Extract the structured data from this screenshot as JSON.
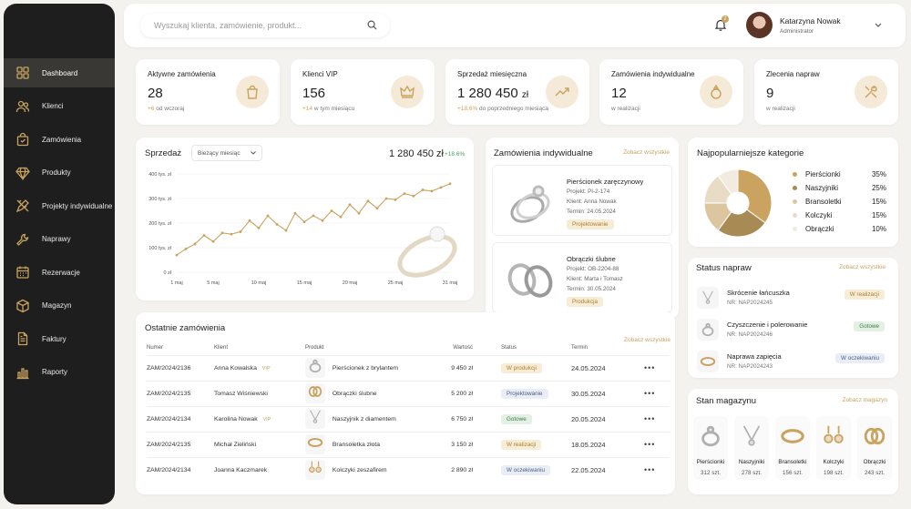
{
  "sidebar": {
    "items": [
      {
        "label": "Dashboard",
        "icon": "grid-icon"
      },
      {
        "label": "Klienci",
        "icon": "users-icon"
      },
      {
        "label": "Zamówienia",
        "icon": "bag-icon"
      },
      {
        "label": "Produkty",
        "icon": "diamond-icon"
      },
      {
        "label": "Projekty indywidualne",
        "icon": "pencil-ruler-icon"
      },
      {
        "label": "Naprawy",
        "icon": "wrench-icon"
      },
      {
        "label": "Rezerwacje",
        "icon": "calendar-icon"
      },
      {
        "label": "Magazyn",
        "icon": "box-icon"
      },
      {
        "label": "Faktury",
        "icon": "document-icon"
      },
      {
        "label": "Raporty",
        "icon": "bar-chart-icon"
      }
    ]
  },
  "header": {
    "search_placeholder": "Wyszukaj klienta, zamówienie, produkt...",
    "notifications": "2",
    "user_name": "Katarzyna Nowak",
    "user_role": "Administrator"
  },
  "kpis": [
    {
      "title": "Aktywne zamówienia",
      "value": "28",
      "unit": "",
      "delta": "+6",
      "note": "od wczoraj",
      "icon": "bag-icon"
    },
    {
      "title": "Klienci VIP",
      "value": "156",
      "unit": "",
      "delta": "+14",
      "note": "w tym miesiącu",
      "icon": "crown-icon"
    },
    {
      "title": "Sprzedaż miesięczna",
      "value": "1 280 450",
      "unit": "zł",
      "delta": "+18,6%",
      "note": "do poprzedniego miesiąca",
      "icon": "trend-up-icon"
    },
    {
      "title": "Zamówienia indywidualne",
      "value": "12",
      "unit": "",
      "delta": "",
      "note": "w realizacji",
      "icon": "ring-icon"
    },
    {
      "title": "Zlecenia napraw",
      "value": "9",
      "unit": "",
      "delta": "",
      "note": "w realizacji",
      "icon": "tools-icon"
    }
  ],
  "sales": {
    "title": "Sprzedaż",
    "period": "Bieżący miesiąc",
    "total": "1 280 450 zł",
    "growth": "+18.6%"
  },
  "chart_data": {
    "type": "line",
    "x": [
      1,
      2,
      3,
      4,
      5,
      6,
      7,
      8,
      9,
      10,
      11,
      12,
      13,
      14,
      15,
      16,
      17,
      18,
      19,
      20,
      21,
      22,
      23,
      24,
      25,
      26,
      27,
      28,
      29,
      30,
      31
    ],
    "xticks": [
      "1 maj",
      "5 maj",
      "10 maj",
      "15 maj",
      "20 maj",
      "25 maj",
      "31 maj"
    ],
    "xtick_values": [
      1,
      5,
      10,
      15,
      20,
      25,
      31
    ],
    "yticks": [
      "0 zł",
      "100 tys. zł",
      "200 tys. zł",
      "300 tys. zł",
      "400 tys. zł"
    ],
    "ylim": [
      0,
      400000
    ],
    "series": [
      {
        "values": [
          70000,
          95000,
          115000,
          150000,
          125000,
          160000,
          155000,
          165000,
          210000,
          180000,
          230000,
          195000,
          170000,
          240000,
          205000,
          230000,
          210000,
          250000,
          225000,
          275000,
          240000,
          290000,
          260000,
          300000,
          295000,
          320000,
          310000,
          335000,
          330000,
          345000,
          360000
        ]
      }
    ],
    "grid": true,
    "color": "#c9a35f"
  },
  "individual": {
    "title": "Zamówienia indywidualne",
    "link": "Zobacz wszystkie",
    "items": [
      {
        "name": "Pierścionek zaręczynowy",
        "project": "Projekt: PI-2-174",
        "client": "Klient: Anna Nowak",
        "term": "Termin: 24.05.2024",
        "status": "Projektowanie"
      },
      {
        "name": "Obrączki ślubne",
        "project": "Projekt: OB-2204-88",
        "client": "Klient: Marta i Tomasz",
        "term": "Termin: 30.05.2024",
        "status": "Produkcja"
      }
    ]
  },
  "categories": {
    "title": "Najpopularniejsze kategorie",
    "items": [
      {
        "name": "Pierścionki",
        "pct": "35%",
        "value": 35,
        "color": "#c9a35f"
      },
      {
        "name": "Naszyjniki",
        "pct": "25%",
        "value": 25,
        "color": "#a88a55"
      },
      {
        "name": "Bransoletki",
        "pct": "15%",
        "value": 15,
        "color": "#dcc6a0"
      },
      {
        "name": "Kolczyki",
        "pct": "15%",
        "value": 15,
        "color": "#e8dcc7"
      },
      {
        "name": "Obrączki",
        "pct": "10%",
        "value": 10,
        "color": "#f1ebe0"
      }
    ]
  },
  "repairs": {
    "title": "Status napraw",
    "link": "Zobacz wszystkie",
    "items": [
      {
        "name": "Skrócenie łańcuszka",
        "nr": "NR: NAP2024245",
        "status": "W realizacji",
        "style": "p-gold"
      },
      {
        "name": "Czyszczenie i polerowanie",
        "nr": "NR: NAP2024246",
        "status": "Gotowe",
        "style": "p-green"
      },
      {
        "name": "Naprawa zapięcia",
        "nr": "NR: NAP2024243",
        "status": "W oczekiwaniu",
        "style": "p-blue"
      }
    ]
  },
  "orders": {
    "title": "Ostatnie zamówienia",
    "link": "Zobacz wszystkie",
    "columns": [
      "Numer",
      "Klient",
      "Produkt",
      "Wartość",
      "Status",
      "Termin"
    ],
    "rows": [
      {
        "nr": "ZAM/2024/2136",
        "client": "Anna Kowalska",
        "vip": "VIP",
        "product": "Pierścionek z brylantem",
        "value": "9 450 zł",
        "status": "W produkcji",
        "style": "p-gold",
        "term": "24.05.2024"
      },
      {
        "nr": "ZAM/2024/2135",
        "client": "Tomasz Wiśniewski",
        "vip": "",
        "product": "Obrączki ślubne",
        "value": "5 200 zł",
        "status": "Projektowanie",
        "style": "p-blue",
        "term": "30.05.2024"
      },
      {
        "nr": "ZAM/2024/2134",
        "client": "Karolina Nowak",
        "vip": "VIP",
        "product": "Naszyjnik z diamentem",
        "value": "6 750 zł",
        "status": "Gotowe",
        "style": "p-green",
        "term": "20.05.2024"
      },
      {
        "nr": "ZAM/2024/2135",
        "client": "Michał Zieliński",
        "vip": "",
        "product": "Bransoletka złota",
        "value": "3 150 zł",
        "status": "W realizacji",
        "style": "p-gold",
        "term": "18.05.2024"
      },
      {
        "nr": "ZAM/2024/2134",
        "client": "Joanna Kaczmarek",
        "vip": "",
        "product": "Kolczyki zeszafirem",
        "value": "2 890 zł",
        "status": "W oczekiwaniu",
        "style": "p-blue",
        "term": "22.05.2024"
      }
    ]
  },
  "stock": {
    "title": "Stan magazynu",
    "link": "Zobacz magazyn",
    "items": [
      {
        "name": "Pierścionki",
        "qty": "312 szt."
      },
      {
        "name": "Naszyjniki",
        "qty": "278 szt."
      },
      {
        "name": "Bransoletki",
        "qty": "156 szt."
      },
      {
        "name": "Kolczyki",
        "qty": "198 szt."
      },
      {
        "name": "Obrączki",
        "qty": "243 szt."
      }
    ]
  }
}
